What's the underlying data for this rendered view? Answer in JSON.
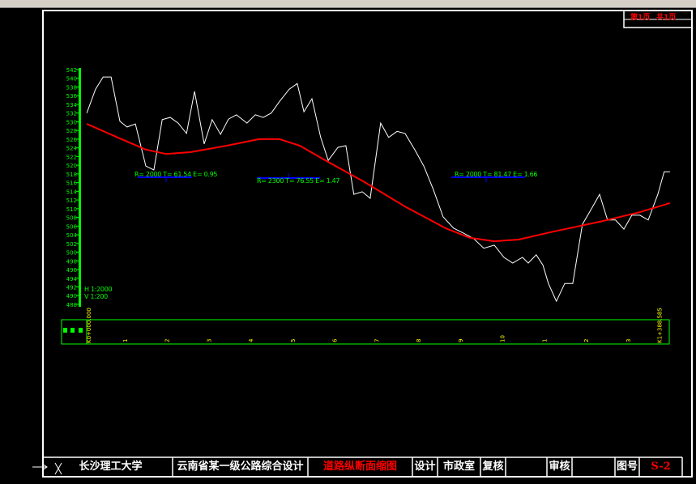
{
  "sheet": {
    "page": "第1页",
    "total": "共1页"
  },
  "title_block": {
    "school": "长沙理工大学",
    "project": "云南省某一级公路综合设计",
    "drawing_title": "道路纵断面缩图",
    "design_label": "设计",
    "designer": "市政室",
    "check_label": "复核",
    "review_label": "审核",
    "drawing_no_label": "图号",
    "drawing_no": "S-2"
  },
  "scale": {
    "h": "H 1:2000",
    "v": "V 1:200"
  },
  "curves": [
    {
      "text": "R= 2000  T= 61.54  E= 0.95"
    },
    {
      "text": "R= 2300  T= 76.55  E= 1.47"
    },
    {
      "text": "R= 2000  T= 81.47  E= 1.66"
    }
  ],
  "colors": {
    "ground": "#ffffff",
    "design": "#ff0000",
    "axis": "#00ff00",
    "tangent": "#0000ff",
    "station": "#ffff00"
  },
  "chart_data": {
    "type": "line",
    "ylim": [
      488,
      542
    ],
    "xlim": [
      0,
      1388.585
    ],
    "y_ticks": [
      "542",
      "540",
      "538",
      "536",
      "534",
      "532",
      "530",
      "528",
      "526",
      "524",
      "522",
      "520",
      "518",
      "516",
      "514",
      "512",
      "510",
      "508",
      "506",
      "504",
      "502",
      "500",
      "498",
      "496",
      "494",
      "492",
      "490",
      "488"
    ],
    "x_tick_labels": [
      "1",
      "2",
      "3",
      "4",
      "5",
      "6",
      "7",
      "8",
      "9",
      "10",
      "1",
      "2",
      "3"
    ],
    "start_station": "K0+000.000",
    "end_station": "K1+388.585",
    "series": [
      {
        "role": "ground",
        "points": [
          [
            4,
            532.0
          ],
          [
            25,
            537.5
          ],
          [
            43,
            540.3
          ],
          [
            62,
            540.3
          ],
          [
            83,
            530.1
          ],
          [
            100,
            528.8
          ],
          [
            120,
            529.5
          ],
          [
            145,
            519.8
          ],
          [
            164,
            518.9
          ],
          [
            184,
            530.5
          ],
          [
            203,
            531.0
          ],
          [
            222,
            529.7
          ],
          [
            242,
            527.3
          ],
          [
            261,
            537.0
          ],
          [
            284,
            524.9
          ],
          [
            303,
            530.5
          ],
          [
            323,
            527.1
          ],
          [
            342,
            530.6
          ],
          [
            361,
            531.6
          ],
          [
            386,
            529.7
          ],
          [
            406,
            531.6
          ],
          [
            425,
            531.0
          ],
          [
            444,
            532.0
          ],
          [
            464,
            534.7
          ],
          [
            487,
            537.5
          ],
          [
            506,
            538.8
          ],
          [
            522,
            532.3
          ],
          [
            541,
            535.3
          ],
          [
            562,
            526.4
          ],
          [
            580,
            521.1
          ],
          [
            603,
            524.1
          ],
          [
            622,
            524.5
          ],
          [
            641,
            513.3
          ],
          [
            661,
            513.9
          ],
          [
            680,
            512.4
          ],
          [
            705,
            529.7
          ],
          [
            724,
            526.4
          ],
          [
            744,
            527.8
          ],
          [
            763,
            527.3
          ],
          [
            786,
            523.6
          ],
          [
            808,
            519.8
          ],
          [
            831,
            514.3
          ],
          [
            854,
            508.1
          ],
          [
            879,
            505.5
          ],
          [
            902,
            504.4
          ],
          [
            927,
            503.1
          ],
          [
            951,
            500.9
          ],
          [
            976,
            501.6
          ],
          [
            999,
            498.8
          ],
          [
            1020,
            497.5
          ],
          [
            1043,
            498.8
          ],
          [
            1057,
            497.5
          ],
          [
            1076,
            499.4
          ],
          [
            1092,
            497.0
          ],
          [
            1105,
            492.8
          ],
          [
            1124,
            488.7
          ],
          [
            1144,
            492.8
          ],
          [
            1163,
            492.8
          ],
          [
            1186,
            506.4
          ],
          [
            1208,
            510.0
          ],
          [
            1227,
            513.3
          ],
          [
            1246,
            507.4
          ],
          [
            1265,
            507.4
          ],
          [
            1285,
            505.3
          ],
          [
            1304,
            508.5
          ],
          [
            1323,
            508.5
          ],
          [
            1343,
            507.4
          ],
          [
            1366,
            513.3
          ],
          [
            1381,
            518.5
          ],
          [
            1395,
            518.5
          ]
        ]
      },
      {
        "role": "design",
        "points": [
          [
            4,
            529.5
          ],
          [
            87,
            526.0
          ],
          [
            145,
            523.6
          ],
          [
            193,
            522.6
          ],
          [
            251,
            523.0
          ],
          [
            338,
            524.5
          ],
          [
            415,
            526.0
          ],
          [
            464,
            526.0
          ],
          [
            512,
            524.5
          ],
          [
            570,
            521.3
          ],
          [
            667,
            516.1
          ],
          [
            763,
            510.5
          ],
          [
            860,
            505.5
          ],
          [
            918,
            503.3
          ],
          [
            976,
            502.5
          ],
          [
            1034,
            502.9
          ],
          [
            1111,
            504.6
          ],
          [
            1227,
            507.0
          ],
          [
            1323,
            509.2
          ],
          [
            1395,
            511.3
          ]
        ]
      }
    ]
  }
}
